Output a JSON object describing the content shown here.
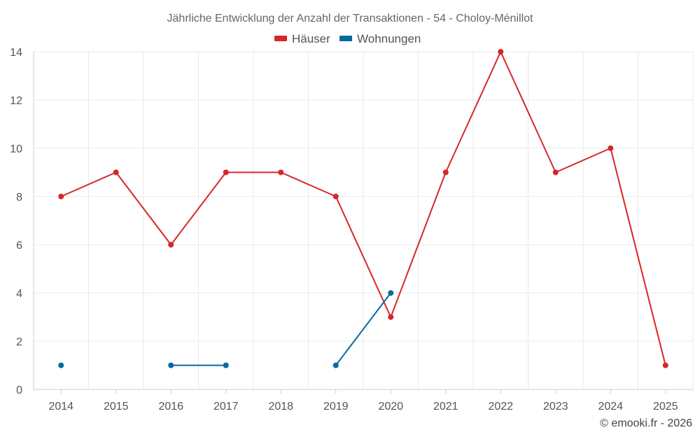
{
  "chart_data": {
    "type": "line",
    "title": "Jährliche Entwicklung der Anzahl der Transaktionen - 54 - Choloy-Ménillot",
    "categories": [
      "2014",
      "2015",
      "2016",
      "2017",
      "2018",
      "2019",
      "2020",
      "2021",
      "2022",
      "2023",
      "2024",
      "2025"
    ],
    "series": [
      {
        "name": "Häuser",
        "color": "#d62728",
        "values": [
          8,
          9,
          6,
          9,
          9,
          8,
          3,
          9,
          14,
          9,
          10,
          1
        ]
      },
      {
        "name": "Wohnungen",
        "color": "#0868a5",
        "values": [
          1,
          null,
          1,
          1,
          null,
          1,
          4,
          null,
          null,
          null,
          null,
          null
        ]
      }
    ],
    "xlabel": "",
    "ylabel": "",
    "ylim": [
      0,
      14
    ],
    "yticks": [
      "0",
      "2",
      "4",
      "6",
      "8",
      "10",
      "12",
      "14"
    ],
    "grid": true,
    "legend_position": "top-center"
  },
  "credit": "© emooki.fr - 2026"
}
